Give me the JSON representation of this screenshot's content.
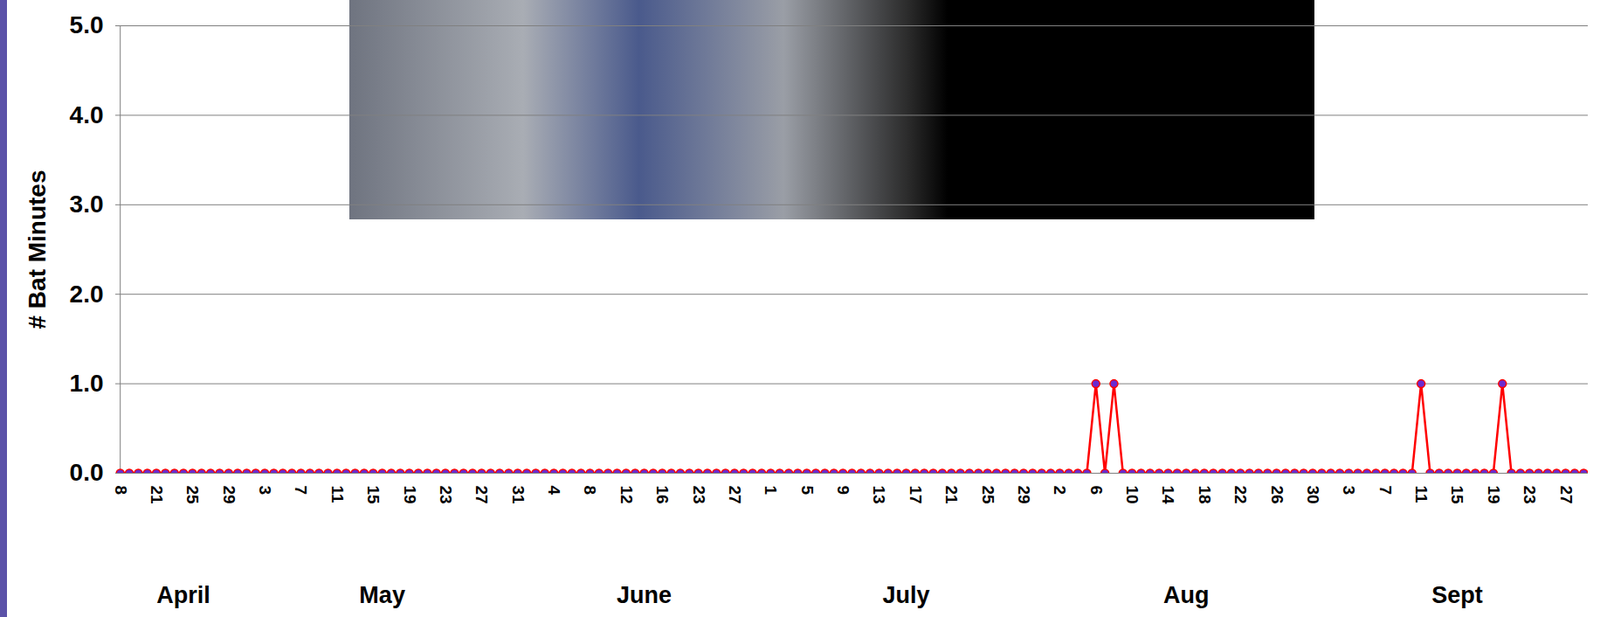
{
  "chart_data": {
    "type": "line",
    "y_label": "# Bat Minutes",
    "categories": [
      "8",
      null,
      null,
      null,
      "21",
      null,
      null,
      null,
      "25",
      null,
      null,
      null,
      "29",
      null,
      null,
      null,
      "3",
      null,
      null,
      null,
      "7",
      null,
      null,
      null,
      "11",
      null,
      null,
      null,
      "15",
      null,
      null,
      null,
      "19",
      null,
      null,
      null,
      "23",
      null,
      null,
      null,
      "27",
      null,
      null,
      null,
      "31",
      null,
      null,
      null,
      "4",
      null,
      null,
      null,
      "8",
      null,
      null,
      null,
      "12",
      null,
      null,
      null,
      "16",
      null,
      null,
      null,
      "23",
      null,
      null,
      null,
      "27",
      null,
      null,
      null,
      "1",
      null,
      null,
      null,
      "5",
      null,
      null,
      null,
      "9",
      null,
      null,
      null,
      "13",
      null,
      null,
      null,
      "17",
      null,
      null,
      null,
      "21",
      null,
      null,
      null,
      "25",
      null,
      null,
      null,
      "29",
      null,
      null,
      null,
      "2",
      null,
      null,
      null,
      "6",
      null,
      null,
      null,
      "10",
      null,
      null,
      null,
      "14",
      null,
      null,
      null,
      "18",
      null,
      null,
      null,
      "22",
      null,
      null,
      null,
      "26",
      null,
      null,
      null,
      "30",
      null,
      null,
      null,
      "3",
      null,
      null,
      null,
      "7",
      null,
      null,
      null,
      "11",
      null,
      null,
      null,
      "15",
      null,
      null,
      null,
      "19",
      null,
      null,
      null,
      "23",
      null,
      null,
      null,
      "27",
      null,
      null
    ],
    "values": [
      0,
      0,
      0,
      0,
      0,
      0,
      0,
      0,
      0,
      0,
      0,
      0,
      0,
      0,
      0,
      0,
      0,
      0,
      0,
      0,
      0,
      0,
      0,
      0,
      0,
      0,
      0,
      0,
      0,
      0,
      0,
      0,
      0,
      0,
      0,
      0,
      0,
      0,
      0,
      0,
      0,
      0,
      0,
      0,
      0,
      0,
      0,
      0,
      0,
      0,
      0,
      0,
      0,
      0,
      0,
      0,
      0,
      0,
      0,
      0,
      0,
      0,
      0,
      0,
      0,
      0,
      0,
      0,
      0,
      0,
      0,
      0,
      0,
      0,
      0,
      0,
      0,
      0,
      0,
      0,
      0,
      0,
      0,
      0,
      0,
      0,
      0,
      0,
      0,
      0,
      0,
      0,
      0,
      0,
      0,
      0,
      0,
      0,
      0,
      0,
      0,
      0,
      0,
      0,
      0,
      0,
      0,
      0,
      1,
      0,
      1,
      0,
      0,
      0,
      0,
      0,
      0,
      0,
      0,
      0,
      0,
      0,
      0,
      0,
      0,
      0,
      0,
      0,
      0,
      0,
      0,
      0,
      0,
      0,
      0,
      0,
      0,
      0,
      0,
      0,
      0,
      0,
      0,
      0,
      1,
      0,
      0,
      0,
      0,
      0,
      0,
      0,
      0,
      1,
      0,
      0,
      0,
      0,
      0,
      0,
      0,
      0,
      0
    ],
    "months": [
      {
        "name": "April",
        "start": 0
      },
      {
        "name": "May",
        "start": 14
      },
      {
        "name": "June",
        "start": 45
      },
      {
        "name": "July",
        "start": 72
      },
      {
        "name": "Aug",
        "start": 103
      },
      {
        "name": "Sept",
        "start": 134
      }
    ],
    "color": "#ff0000",
    "marker": "circle",
    "ylim": [
      0,
      5
    ],
    "yticks": [
      0,
      1,
      2,
      3,
      4,
      5
    ],
    "grid": true
  }
}
